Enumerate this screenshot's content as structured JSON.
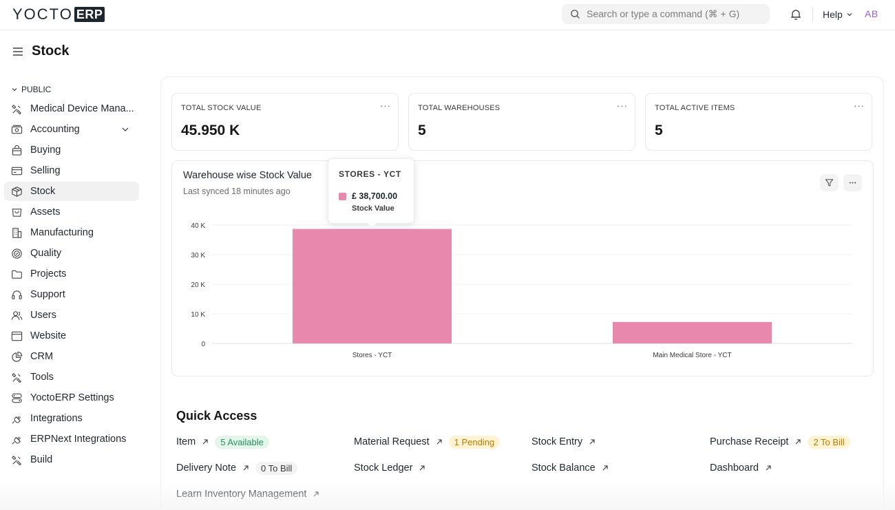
{
  "navbar": {
    "logo_text": "YOCTO",
    "logo_box": "ERP",
    "search_placeholder": "Search or type a command (⌘ + G)",
    "help_label": "Help",
    "avatar_initials": "AB"
  },
  "page": {
    "title": "Stock"
  },
  "sidebar": {
    "section_label": "PUBLIC",
    "items": [
      {
        "label": "Medical Device Mana...",
        "icon": "tools-icon"
      },
      {
        "label": "Accounting",
        "icon": "money-icon"
      },
      {
        "label": "Buying",
        "icon": "bag-icon"
      },
      {
        "label": "Selling",
        "icon": "card-icon"
      },
      {
        "label": "Stock",
        "icon": "box-icon"
      },
      {
        "label": "Assets",
        "icon": "cart-icon"
      },
      {
        "label": "Manufacturing",
        "icon": "building-icon"
      },
      {
        "label": "Quality",
        "icon": "badge-icon"
      },
      {
        "label": "Projects",
        "icon": "folder-icon"
      },
      {
        "label": "Support",
        "icon": "headset-icon"
      },
      {
        "label": "Users",
        "icon": "users-icon"
      },
      {
        "label": "Website",
        "icon": "browser-icon"
      },
      {
        "label": "CRM",
        "icon": "pie-icon"
      },
      {
        "label": "Tools",
        "icon": "tools-icon"
      },
      {
        "label": "YoctoERP Settings",
        "icon": "settings-icon"
      },
      {
        "label": "Integrations",
        "icon": "plug-icon"
      },
      {
        "label": "ERPNext Integrations",
        "icon": "plug-icon"
      },
      {
        "label": "Build",
        "icon": "tools-icon"
      }
    ]
  },
  "number_cards": [
    {
      "label": "TOTAL STOCK VALUE",
      "value": "45.950 K"
    },
    {
      "label": "TOTAL WAREHOUSES",
      "value": "5"
    },
    {
      "label": "TOTAL ACTIVE ITEMS",
      "value": "5"
    }
  ],
  "chart_card": {
    "title": "Warehouse wise Stock Value",
    "subtitle": "Last synced 18 minutes ago"
  },
  "tooltip": {
    "title": "STORES - YCT",
    "value": "£ 38,700.00",
    "series_name": "Stock Value"
  },
  "chart_data": {
    "type": "bar",
    "title": "Warehouse wise Stock Value",
    "categories": [
      "Stores - YCT",
      "Main Medical Store - YCT"
    ],
    "series": [
      {
        "name": "Stock Value",
        "values": [
          38700,
          7250
        ]
      }
    ],
    "ylim": [
      0,
      40000
    ],
    "y_ticks": [
      0,
      10000,
      20000,
      30000,
      40000
    ],
    "y_tick_labels": [
      "0",
      "10 K",
      "20 K",
      "30 K",
      "40 K"
    ],
    "grid": true,
    "bar_color": "#e888ac"
  },
  "quick_access": {
    "title": "Quick Access",
    "links": [
      {
        "label": "Item",
        "badge": "5 Available",
        "badge_color": "green"
      },
      {
        "label": "Material Request",
        "badge": "1 Pending",
        "badge_color": "yellow"
      },
      {
        "label": "Stock Entry",
        "badge": "",
        "badge_color": ""
      },
      {
        "label": "Purchase Receipt",
        "badge": "2 To Bill",
        "badge_color": "yellow"
      },
      {
        "label": "Delivery Note",
        "badge": "0 To Bill",
        "badge_color": "gray"
      },
      {
        "label": "Stock Ledger",
        "badge": "",
        "badge_color": ""
      },
      {
        "label": "Stock Balance",
        "badge": "",
        "badge_color": ""
      },
      {
        "label": "Dashboard",
        "badge": "",
        "badge_color": ""
      },
      {
        "label": "Learn Inventory Management",
        "badge": "",
        "badge_color": ""
      }
    ]
  }
}
